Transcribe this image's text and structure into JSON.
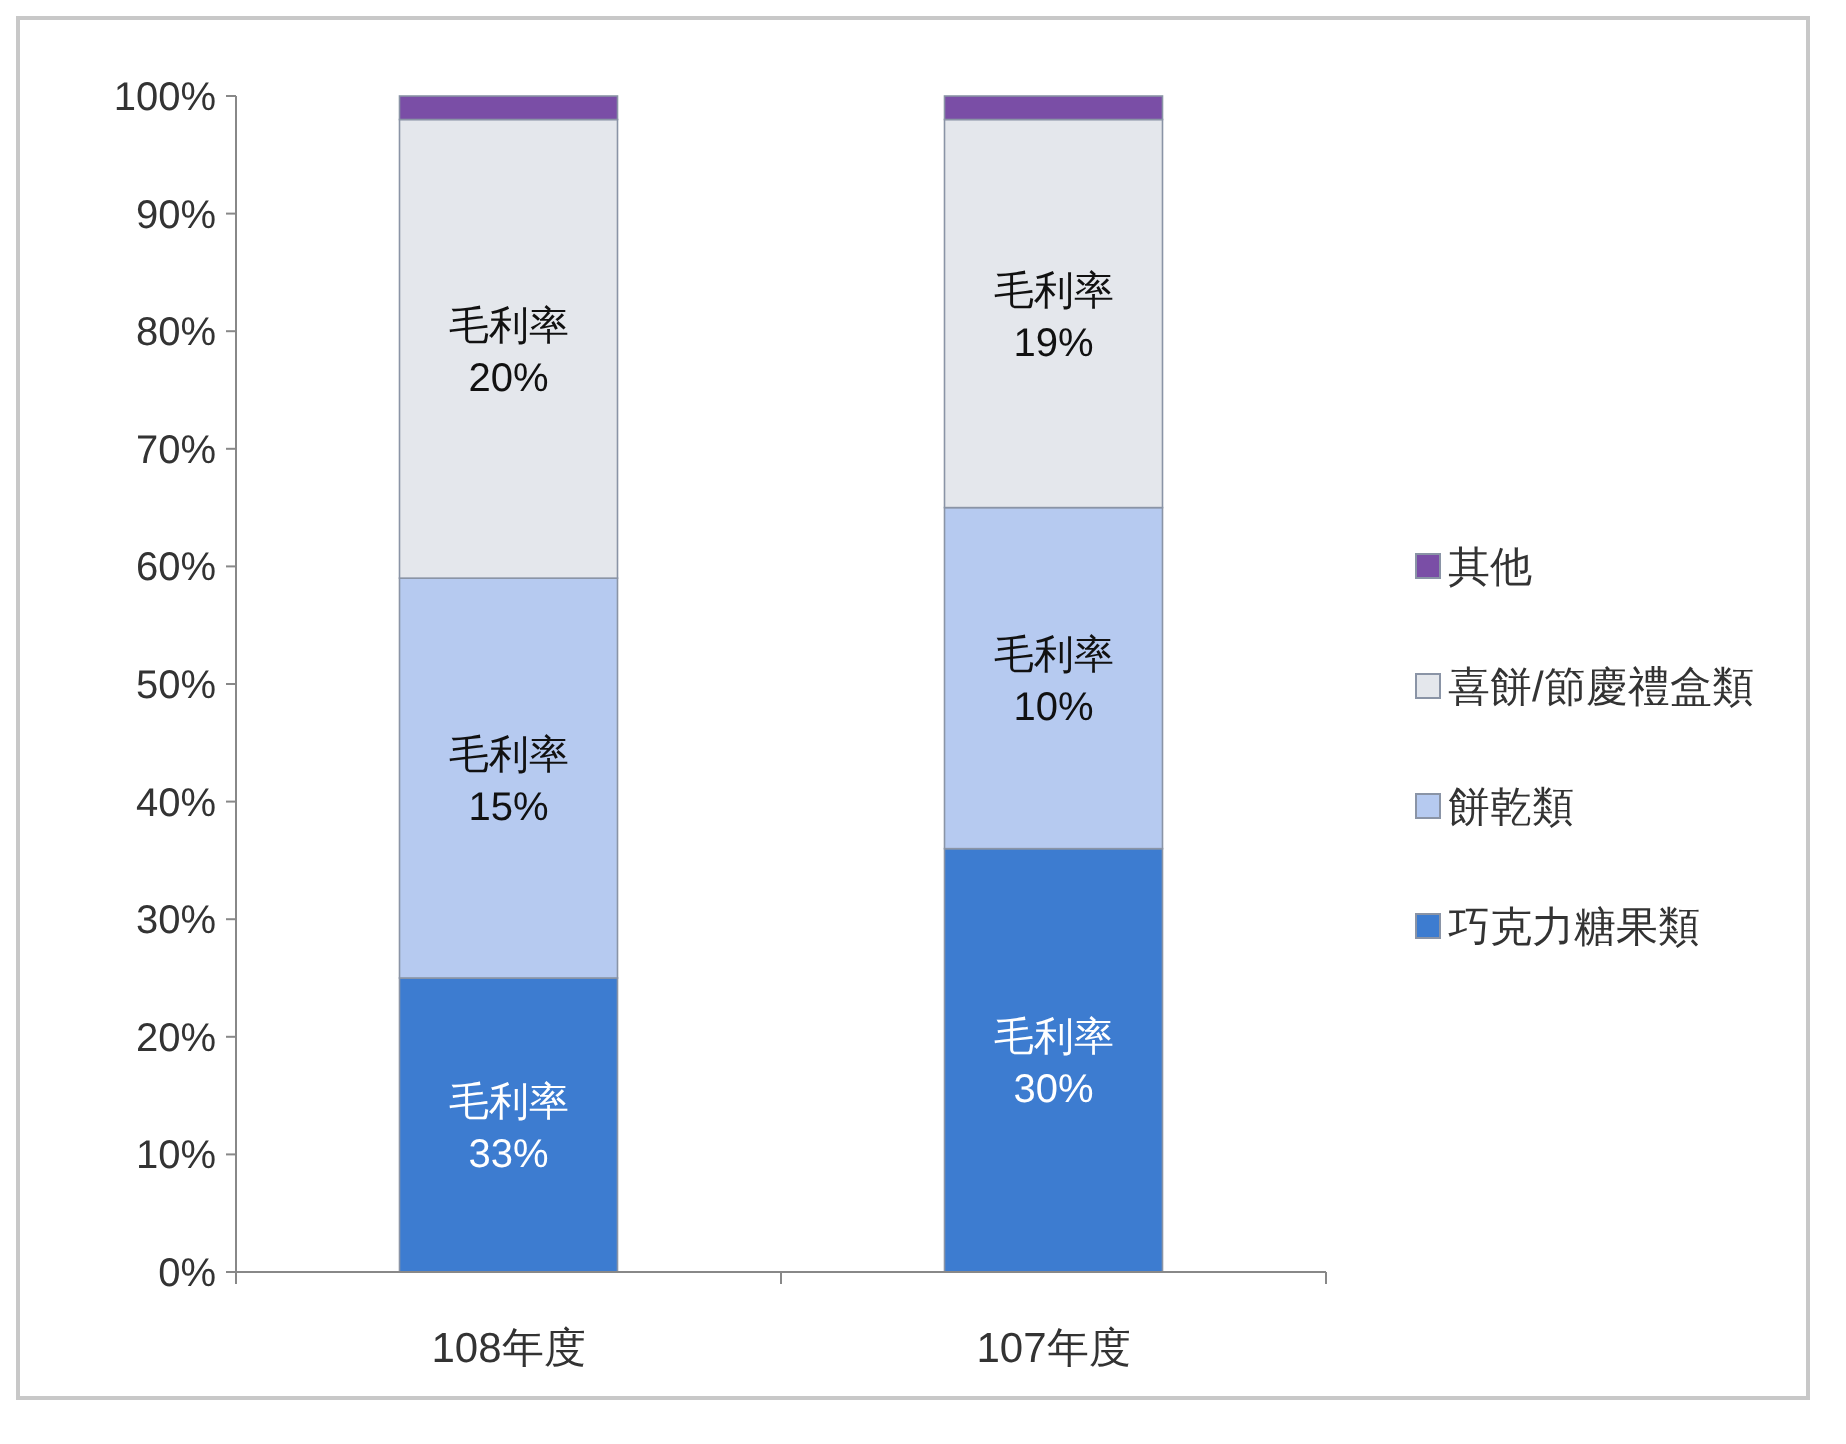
{
  "chart_data": {
    "type": "bar",
    "stacked": true,
    "categories": [
      "108年度",
      "107年度"
    ],
    "series": [
      {
        "name": "巧克力糖果類",
        "color": "#3d7cd0",
        "values": [
          25,
          36
        ]
      },
      {
        "name": "餅乾類",
        "color": "#b6caf0",
        "values": [
          34,
          29
        ]
      },
      {
        "name": "喜餅/節慶禮盒類",
        "color": "#e4e7ec",
        "values": [
          39,
          33
        ]
      },
      {
        "name": "其他",
        "color": "#7a4ea6",
        "values": [
          2,
          2
        ]
      }
    ],
    "ylim": [
      0,
      100
    ],
    "yticks": [
      {
        "value": 0,
        "label": "0%"
      },
      {
        "value": 10,
        "label": "10%"
      },
      {
        "value": 20,
        "label": "20%"
      },
      {
        "value": 30,
        "label": "30%"
      },
      {
        "value": 40,
        "label": "40%"
      },
      {
        "value": 50,
        "label": "50%"
      },
      {
        "value": 60,
        "label": "60%"
      },
      {
        "value": 70,
        "label": "70%"
      },
      {
        "value": 80,
        "label": "80%"
      },
      {
        "value": 90,
        "label": "90%"
      },
      {
        "value": 100,
        "label": "100%"
      }
    ],
    "legend": "right",
    "grid": false,
    "annotations": [
      "毛利率\n33%",
      "毛利率\n15%",
      "毛利率\n20%",
      "毛利率\n30%",
      "毛利率\n10%",
      "毛利率\n19%"
    ]
  }
}
